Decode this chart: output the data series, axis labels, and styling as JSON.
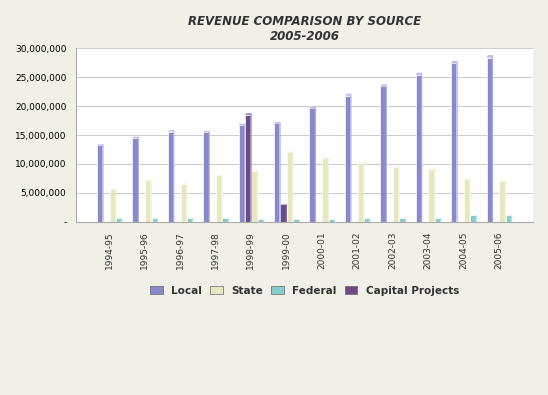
{
  "title_line1": "REVENUE COMPARISON BY SOURCE",
  "title_line2": "2005-2006",
  "categories": [
    "1994-95",
    "1995-96",
    "1996-97",
    "1997-98",
    "1998-99",
    "1999-00",
    "2000-01",
    "2001-02",
    "2002-03",
    "2003-04",
    "2004-05",
    "2005-06"
  ],
  "local": [
    13200000,
    14500000,
    15600000,
    15500000,
    16700000,
    17000000,
    19600000,
    21800000,
    23400000,
    25400000,
    27400000,
    28400000
  ],
  "state": [
    5600000,
    7200000,
    6600000,
    8000000,
    8800000,
    12000000,
    11000000,
    10200000,
    9500000,
    9200000,
    7400000,
    7100000
  ],
  "federal": [
    600000,
    600000,
    600000,
    600000,
    400000,
    400000,
    400000,
    600000,
    600000,
    600000,
    1100000,
    1100000
  ],
  "capital": [
    0,
    0,
    0,
    0,
    18500000,
    3000000,
    0,
    0,
    0,
    0,
    0,
    0
  ],
  "local_color_front": "#8888cc",
  "local_color_side": "#aaaadd",
  "local_color_top": "#bbbbee",
  "state_color_front": "#e8e8c0",
  "state_color_side": "#f0f0d0",
  "state_color_top": "#f5f5dc",
  "federal_color_front": "#88cccc",
  "federal_color_side": "#aadddd",
  "federal_color_top": "#bbeeee",
  "capital_color_front": "#6b4a8a",
  "capital_color_side": "#8b6aaa",
  "capital_color_top": "#9b7aba",
  "background_color": "#f0f0e8",
  "plot_bg_color": "#ffffff",
  "grid_color": "#cccccc",
  "ylim": [
    0,
    30000000
  ],
  "yticks": [
    0,
    5000000,
    10000000,
    15000000,
    20000000,
    25000000,
    30000000
  ],
  "legend_labels": [
    "Local",
    "State",
    "Federal",
    "Capital Projects"
  ]
}
